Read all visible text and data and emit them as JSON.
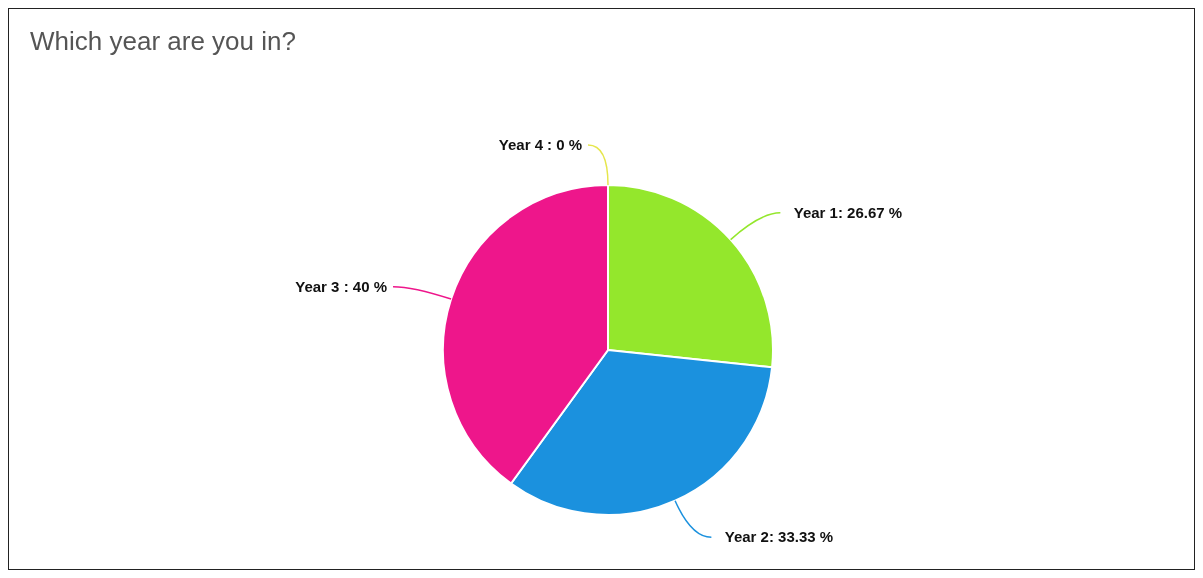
{
  "chart_data": {
    "type": "pie",
    "title": "Which year are you in?",
    "categories": [
      "Year 1",
      "Year 2",
      "Year 3",
      "Year 4"
    ],
    "values": [
      26.67,
      33.33,
      40,
      0
    ],
    "value_labels": [
      ": 26.67 %",
      ": 33.33 %",
      ": 40 %",
      ": 0 %"
    ],
    "colors": [
      "#94e72c",
      "#1b91de",
      "#ee168b",
      "#e6e64c"
    ],
    "legend": false
  }
}
